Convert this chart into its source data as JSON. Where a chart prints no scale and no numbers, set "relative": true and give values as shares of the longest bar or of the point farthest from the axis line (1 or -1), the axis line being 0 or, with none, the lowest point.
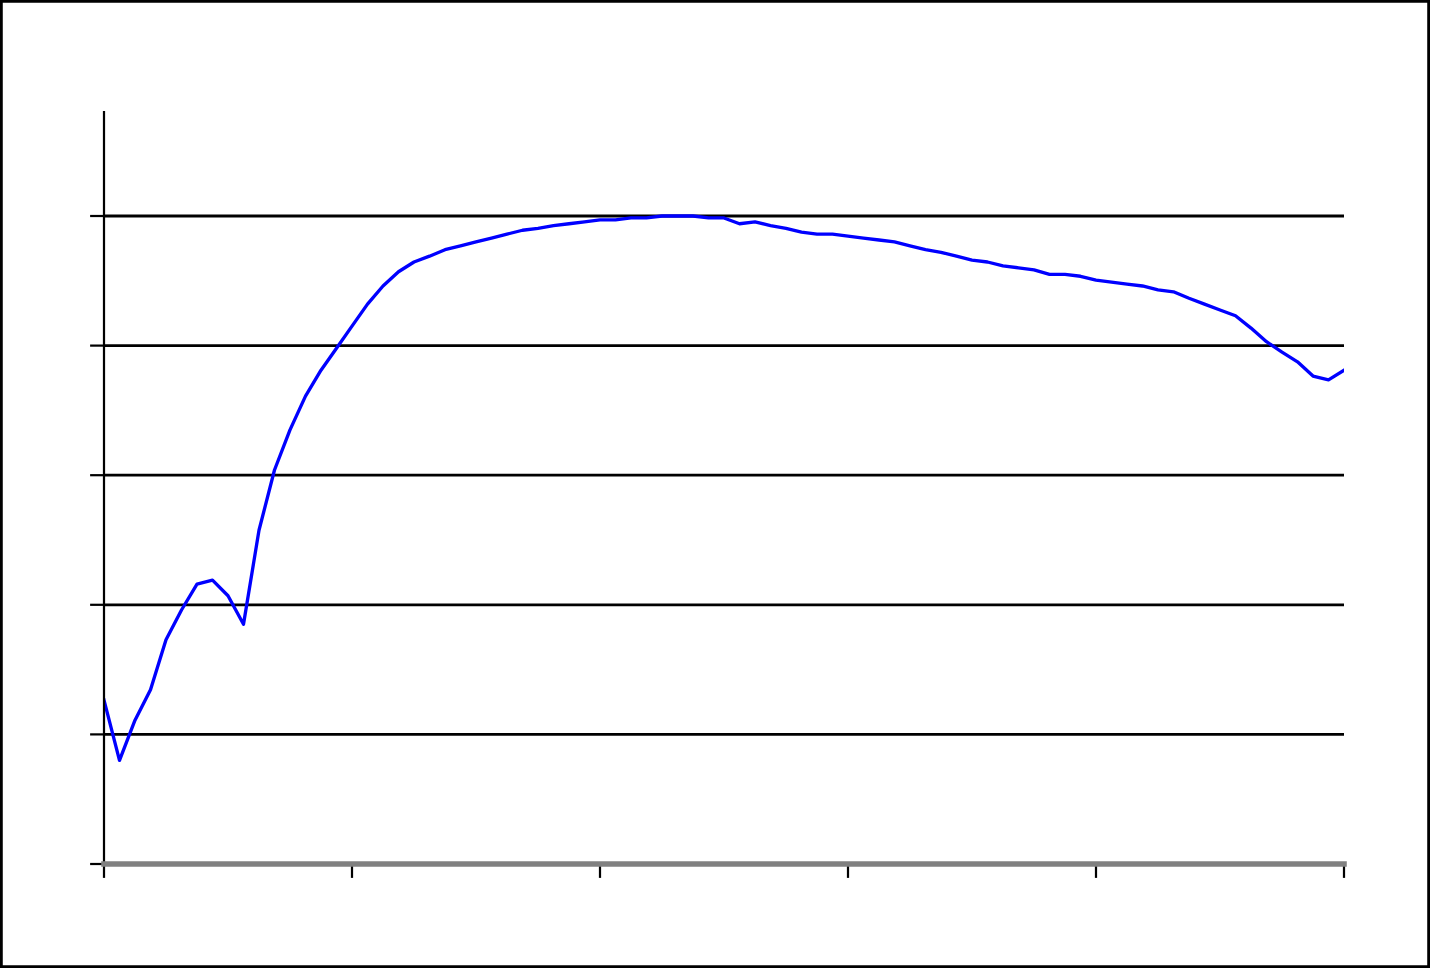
{
  "chart_data": {
    "type": "line",
    "relative": true,
    "tick_labels": false,
    "grid": "y",
    "legend": false,
    "marker": "none",
    "line_style": "solid",
    "categories": [
      null,
      null,
      null,
      null,
      null,
      null,
      null,
      null,
      null,
      null,
      null,
      null,
      null,
      null,
      null,
      null,
      null,
      null,
      null,
      null,
      null,
      null,
      null,
      null,
      null,
      null,
      null,
      null,
      null,
      null,
      null,
      null,
      null,
      null,
      null,
      null,
      null,
      null,
      null,
      null,
      null,
      null,
      null,
      null,
      null,
      null,
      null,
      null,
      null,
      null,
      null,
      null,
      null,
      null,
      null,
      null,
      null,
      null,
      null,
      null,
      null,
      null,
      null,
      null,
      null,
      null,
      null,
      null,
      null,
      null,
      null,
      null,
      null,
      null,
      null,
      null,
      null,
      null,
      null,
      null,
      null
    ],
    "series": [
      {
        "color": "#0000ff",
        "values": [
          0.253,
          0.16,
          0.222,
          0.269,
          0.346,
          0.392,
          0.432,
          0.438,
          0.414,
          0.37,
          0.515,
          0.608,
          0.67,
          0.722,
          0.762,
          0.796,
          0.83,
          0.864,
          0.892,
          0.914,
          0.929,
          0.938,
          0.948,
          0.954,
          0.96,
          0.966,
          0.972,
          0.978,
          0.981,
          0.985,
          0.988,
          0.991,
          0.994,
          0.994,
          0.997,
          0.997,
          1,
          1,
          1,
          0.997,
          0.997,
          0.988,
          0.991,
          0.985,
          0.981,
          0.975,
          0.972,
          0.972,
          0.969,
          0.966,
          0.963,
          0.96,
          0.954,
          0.948,
          0.944,
          0.938,
          0.932,
          0.929,
          0.923,
          0.92,
          0.917,
          0.91,
          0.91,
          0.907,
          0.901,
          0.898,
          0.895,
          0.892,
          0.886,
          0.883,
          0.873,
          0.864,
          0.855,
          0.846,
          0.827,
          0.806,
          0.79,
          0.775,
          0.753,
          0.747,
          0.762
        ]
      }
    ]
  }
}
